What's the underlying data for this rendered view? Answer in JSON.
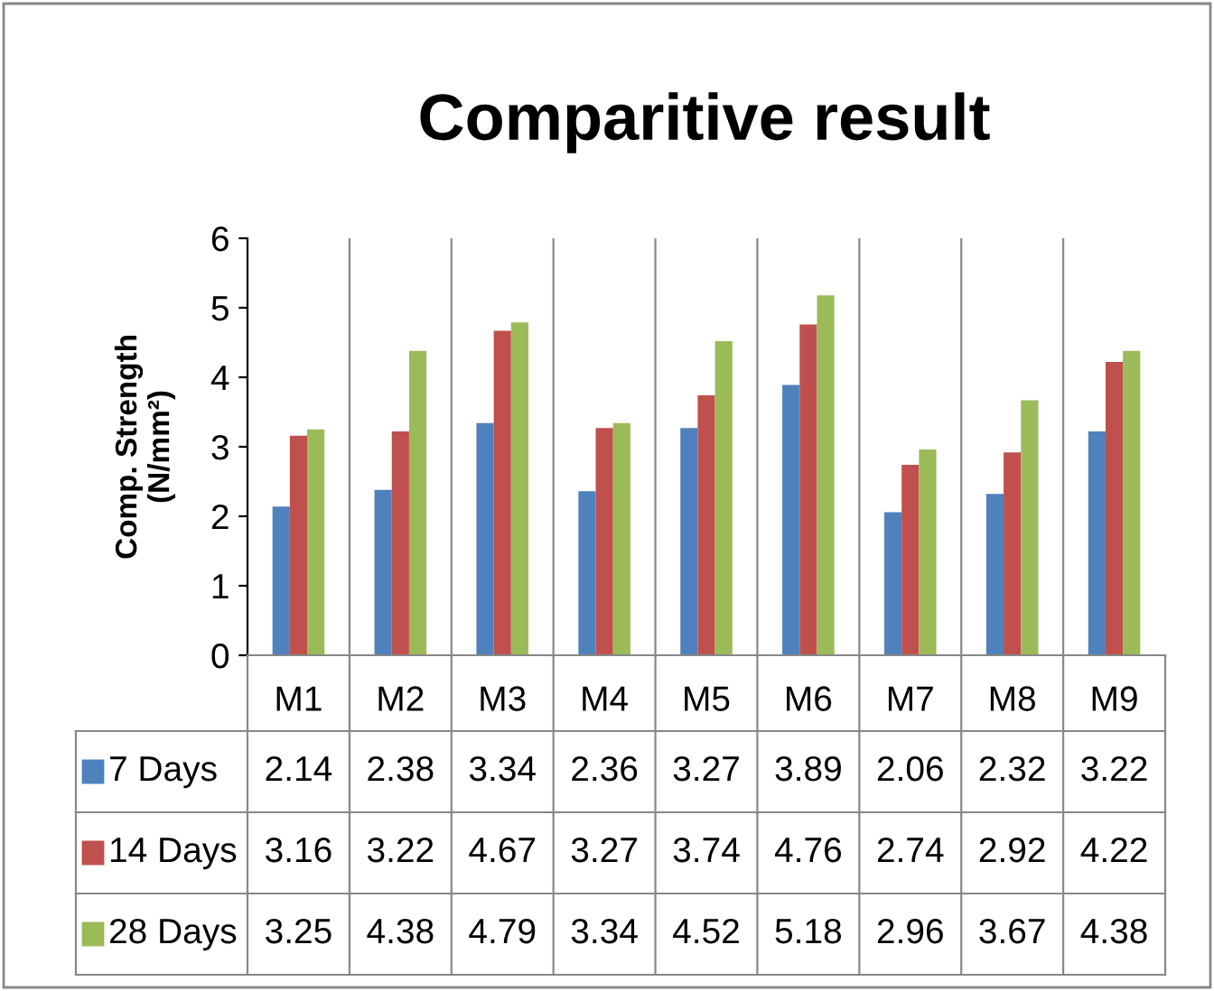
{
  "chart_data": {
    "type": "bar",
    "title": "Comparitive result",
    "ylabel": "Comp. Strength\n(N/mm²)",
    "categories": [
      "M1",
      "M2",
      "M3",
      "M4",
      "M5",
      "M6",
      "M7",
      "M8",
      "M9"
    ],
    "series": [
      {
        "name": "7 Days",
        "color": "#4f81bd",
        "values": [
          2.14,
          2.38,
          3.34,
          2.36,
          3.27,
          3.89,
          2.06,
          2.32,
          3.22
        ]
      },
      {
        "name": "14 Days",
        "color": "#c0504d",
        "values": [
          3.16,
          3.22,
          4.67,
          3.27,
          3.74,
          4.76,
          2.74,
          2.92,
          4.22
        ]
      },
      {
        "name": "28 Days",
        "color": "#9bbb59",
        "values": [
          3.25,
          4.38,
          4.79,
          3.34,
          4.52,
          5.18,
          2.96,
          3.67,
          4.38
        ]
      }
    ],
    "ylim": [
      0,
      6
    ],
    "yticks": [
      0,
      1,
      2,
      3,
      4,
      5,
      6
    ],
    "grid": false,
    "legend": "bottom left",
    "data_labels": true
  }
}
